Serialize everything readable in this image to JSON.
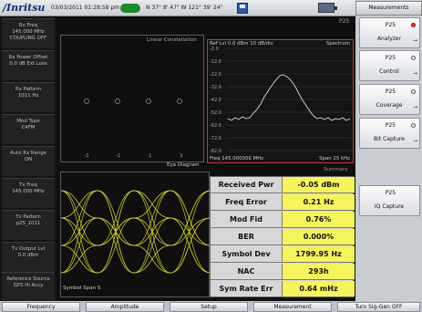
{
  "status": {
    "logo": "/Inritsu",
    "datetime": "03/03/2011 01:28:58 pm",
    "coords": "N 37° 8' 47\" W 121° 39' 24\""
  },
  "left_panel": [
    "Rx Freq\n145.000 MHz\nCOUPLING OFF",
    "Rx Power Offset\n0.0 dB Ext Loss",
    "Rx Pattern\n1011 Hz",
    "Mod Type\nC4FM",
    "Auto Rx Range\nON",
    "Tx Freq\n145.000 MHz",
    "Tx Pattern\np25_1011",
    "Tx Output Lvl\n0.0 dBm",
    "Reference Source\nGPS Hi Accy"
  ],
  "display": {
    "p25_tag": "P25",
    "constellation_title": "Linear Constellation",
    "constellation_axis": [
      "-3",
      "-1",
      "1",
      "3"
    ],
    "eye_title": "Eye Diagram",
    "eye_footer": "Symbol Span 5",
    "spectrum_ref": "Ref Lvl 0.0 dBm   10 dB/div",
    "spectrum_title": "Spectrum",
    "spectrum_y": [
      "-2.0",
      "-12.0",
      "-22.0",
      "-32.0",
      "-42.0",
      "-52.0",
      "-62.0",
      "-72.0",
      "-82.0"
    ],
    "spectrum_freq": "Freq 145.000000 MHz",
    "spectrum_span": "Span 25 kHz",
    "summary_title": "Summary"
  },
  "summary": [
    {
      "label": "Received Pwr",
      "value": "-0.05 dBm"
    },
    {
      "label": "Freq Error",
      "value": "0.21 Hz"
    },
    {
      "label": "Mod Fid",
      "value": "0.76%"
    },
    {
      "label": "BER",
      "value": "0.000%"
    },
    {
      "label": "Symbol Dev",
      "value": "1799.95 Hz"
    },
    {
      "label": "NAC",
      "value": "293h"
    },
    {
      "label": "Sym Rate Err",
      "value": "0.64 mHz"
    }
  ],
  "right_panel": {
    "header": "Measurements",
    "buttons": [
      {
        "top": "P25",
        "bottom": "Analyzer"
      },
      {
        "top": "P25",
        "bottom": "Control"
      },
      {
        "top": "P25",
        "bottom": "Coverage"
      },
      {
        "top": "P25",
        "bottom": "Bit Capture"
      },
      {
        "top": "P25",
        "bottom": "IQ Capture"
      }
    ],
    "active_led_color": "#e0392b"
  },
  "bottom_bar": [
    "Frequency",
    "Amplitude",
    "Setup",
    "Measurement",
    "Turn Sig-Gen OFF"
  ],
  "colors": {
    "eye_trace": "#e8e83a",
    "spectrum_trace": "#d9d9d9",
    "summary_value_bg": "#f6f45c"
  }
}
